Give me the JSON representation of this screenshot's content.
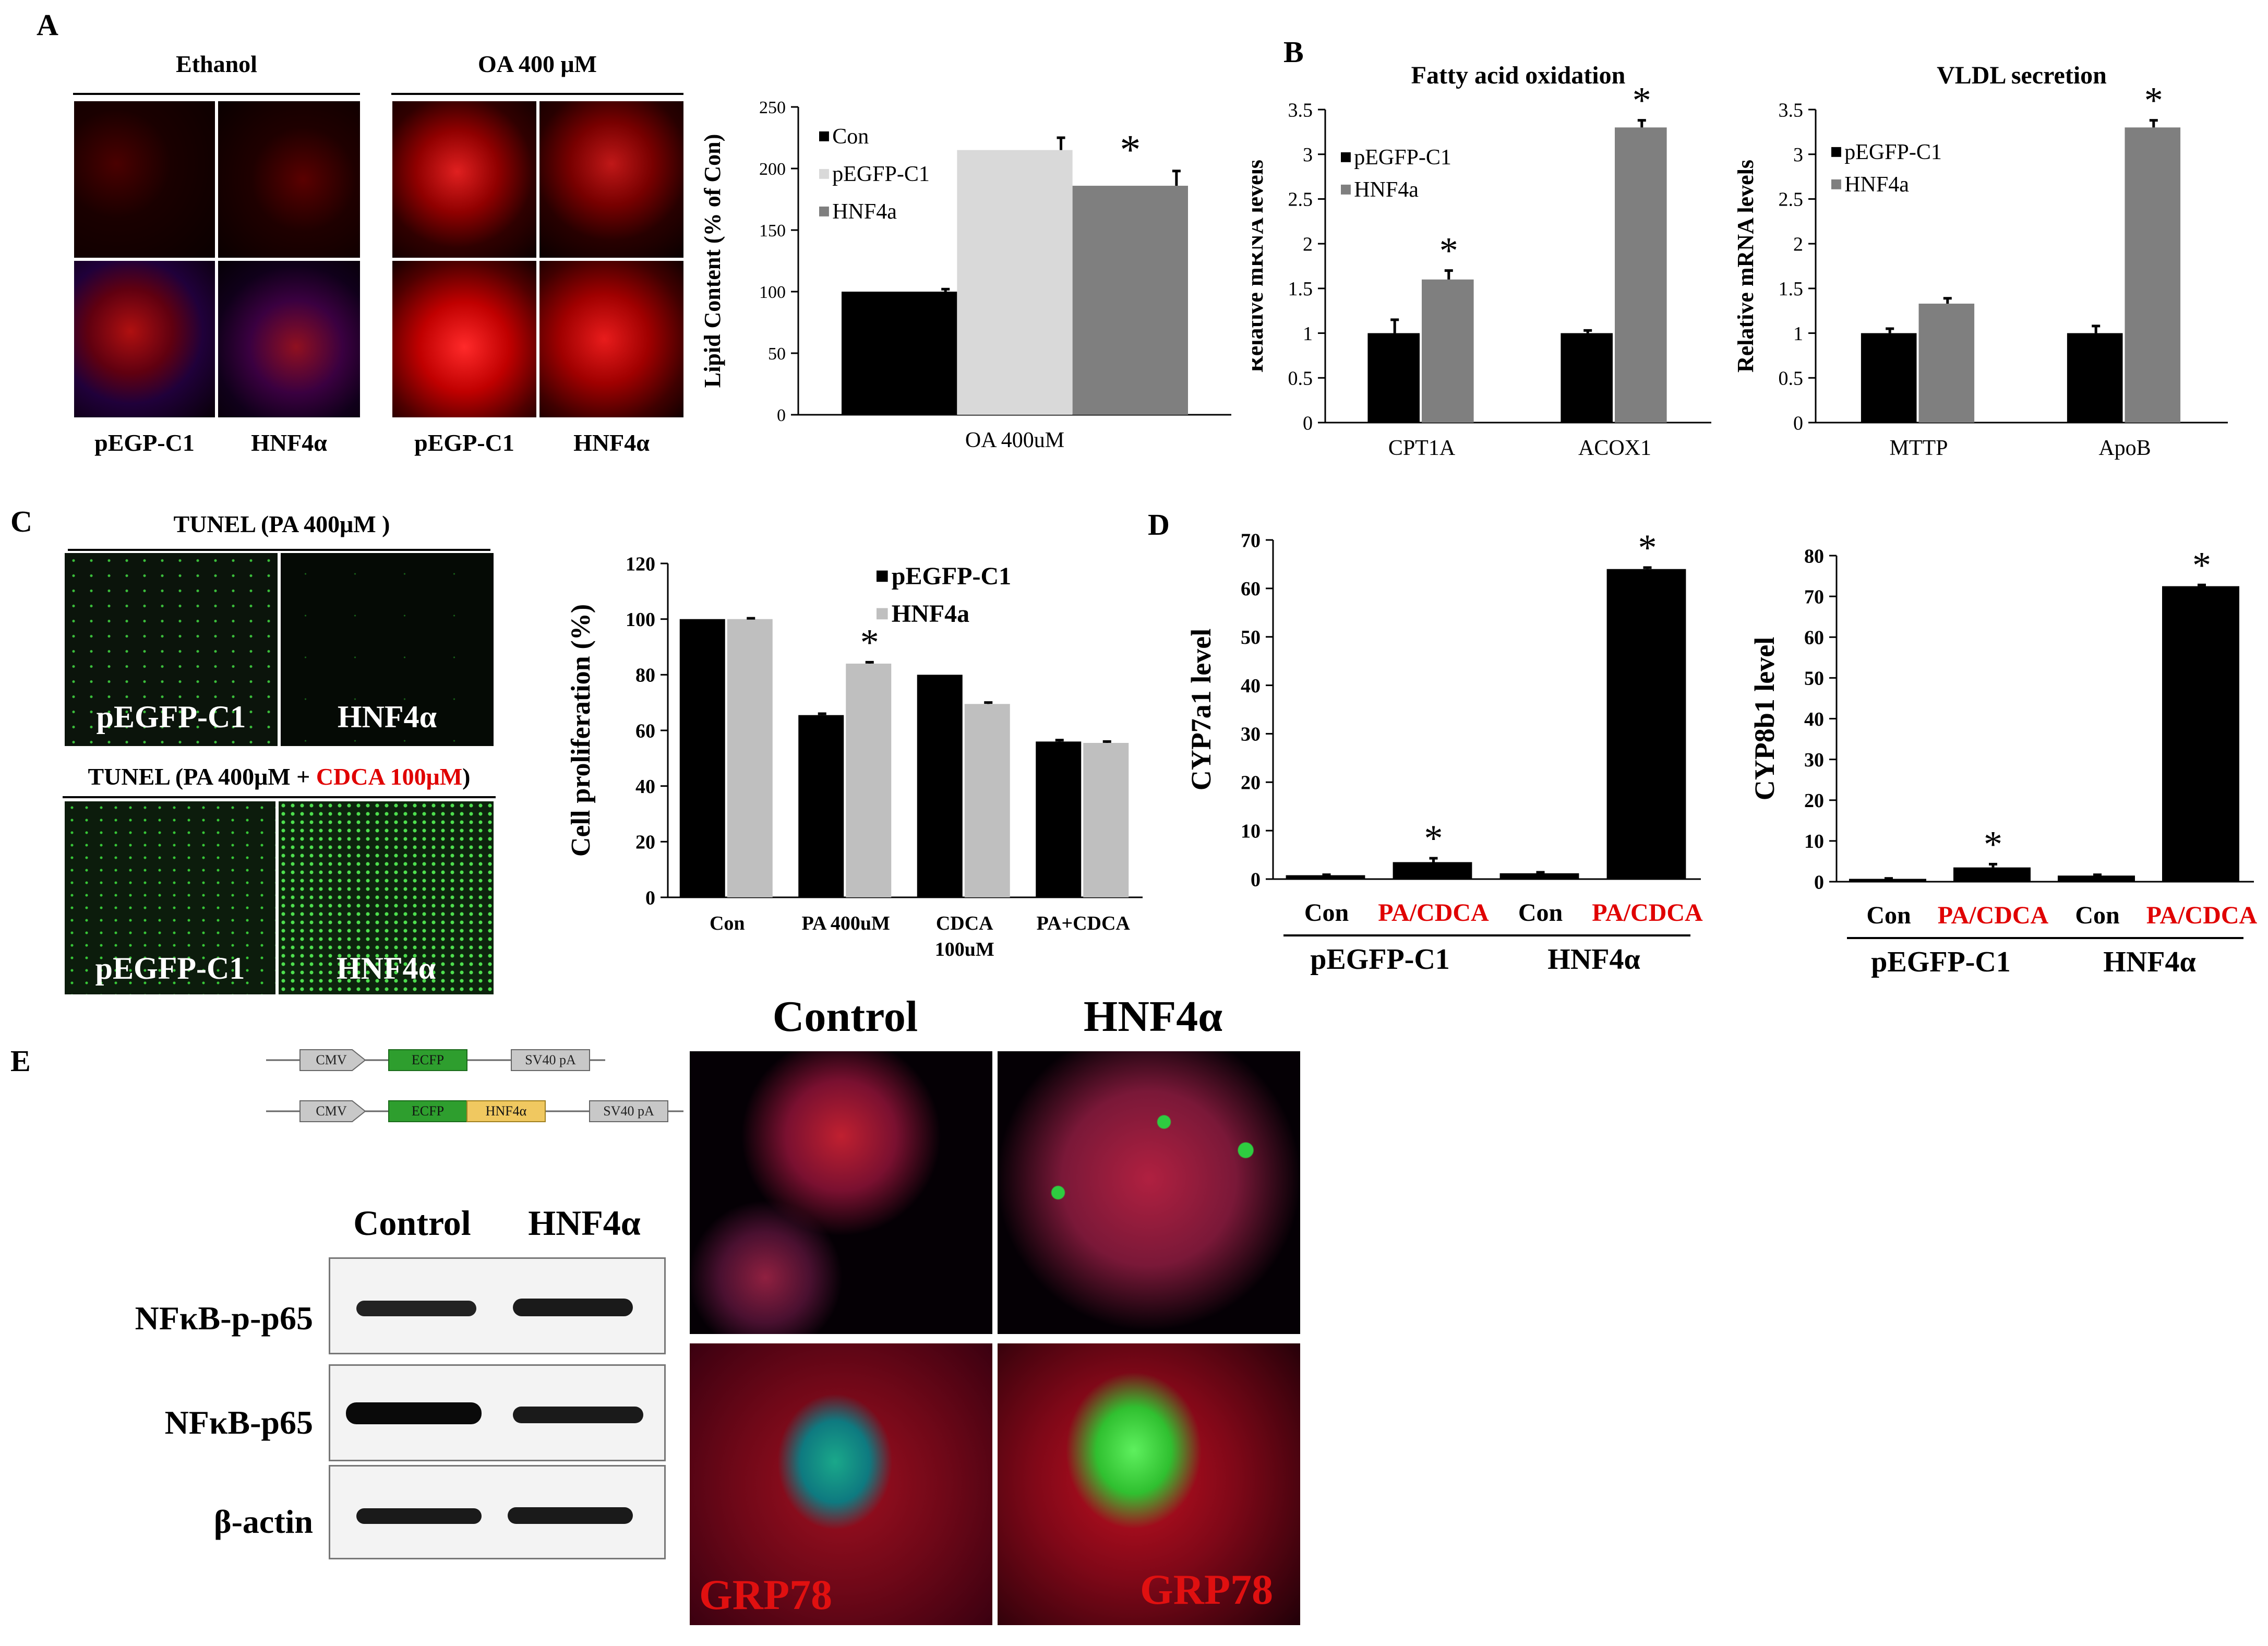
{
  "panels": {
    "A": "A",
    "B": "B",
    "C": "C",
    "D": "D",
    "E": "E"
  },
  "panelA": {
    "ethanol_label": "Ethanol",
    "oa_label": "OA 400 μM",
    "captions": [
      "pEGP-C1",
      "HNF4α",
      "pEGP-C1",
      "HNF4α"
    ]
  },
  "panelC": {
    "tunel_top": "TUNEL (PA 400μM )",
    "tunel_bottom_prefix": "TUNEL (PA 400μM + ",
    "tunel_bottom_cdca": "CDCA 100μM",
    "tunel_bottom_suffix": ")",
    "captions": [
      "pEGFP-C1",
      "HNF4α",
      "pEGFP-C1",
      "HNF4α"
    ]
  },
  "panelE": {
    "construct1": [
      "CMV",
      "ECFP",
      "SV40 pA"
    ],
    "construct2": [
      "CMV",
      "ECFP",
      "HNF4α",
      "SV40 pA"
    ],
    "blot_headers": [
      "Control",
      "HNF4α"
    ],
    "blot_rows": [
      "NFκB-p-p65",
      "NFκB-p65",
      "β-actin"
    ],
    "if_headers": [
      "Control",
      "HNF4α"
    ],
    "if_labels": [
      "GRP78",
      "GRP78"
    ]
  },
  "chart_data": [
    {
      "id": "A-lipid",
      "type": "bar",
      "categories": [
        "OA 400uM"
      ],
      "series": [
        {
          "name": "Con",
          "values": [
            100
          ],
          "errors": [
            2
          ],
          "color": "#000000"
        },
        {
          "name": "pEGFP-C1",
          "values": [
            215
          ],
          "errors": [
            10
          ],
          "color": "#d9d9d9"
        },
        {
          "name": "HNF4a",
          "values": [
            186
          ],
          "errors": [
            12
          ],
          "color": "#7f7f7f"
        }
      ],
      "ylabel": "Lipid Content (% of Con)",
      "ylim": [
        0,
        250
      ],
      "yticks": [
        0,
        50,
        100,
        150,
        200,
        250
      ],
      "legend": "top-left",
      "annotations": [
        {
          "series": "HNF4a",
          "category": "OA 400uM",
          "text": "*"
        }
      ]
    },
    {
      "id": "B-fao",
      "type": "bar",
      "title": "Fatty acid oxidation",
      "categories": [
        "CPT1A",
        "ACOX1"
      ],
      "series": [
        {
          "name": "pEGFP-C1",
          "values": [
            1.0,
            1.0
          ],
          "errors": [
            0.15,
            0.03
          ],
          "color": "#000000"
        },
        {
          "name": "HNF4a",
          "values": [
            1.6,
            3.3
          ],
          "errors": [
            0.1,
            0.08
          ],
          "color": "#7f7f7f"
        }
      ],
      "ylabel": "Relative  mRNA levels",
      "ylim": [
        0,
        3.5
      ],
      "yticks": [
        0,
        0.5,
        1,
        1.5,
        2,
        2.5,
        3,
        3.5
      ],
      "ytick_labels": [
        "0",
        "0.5",
        "1",
        "1.5",
        "2",
        "2.5",
        "3",
        "3.5"
      ],
      "legend": "top-left",
      "annotations": [
        {
          "series": "HNF4a",
          "category": "CPT1A",
          "text": "*"
        },
        {
          "series": "HNF4a",
          "category": "ACOX1",
          "text": "*"
        }
      ]
    },
    {
      "id": "B-vldl",
      "type": "bar",
      "title": "VLDL secretion",
      "categories": [
        "MTTP",
        "ApoB"
      ],
      "series": [
        {
          "name": "pEGFP-C1",
          "values": [
            1.0,
            1.0
          ],
          "errors": [
            0.05,
            0.08
          ],
          "color": "#000000"
        },
        {
          "name": "HNF4a",
          "values": [
            1.33,
            3.3
          ],
          "errors": [
            0.06,
            0.08
          ],
          "color": "#7f7f7f"
        }
      ],
      "ylabel": "Relative  mRNA levels",
      "ylim": [
        0,
        3.5
      ],
      "yticks": [
        0,
        0.5,
        1,
        1.5,
        2,
        2.5,
        3,
        3.5
      ],
      "ytick_labels": [
        "0",
        "0.5",
        "1",
        "1.5",
        "2",
        "2.5",
        "3",
        "3.5"
      ],
      "legend": "top-left",
      "annotations": [
        {
          "series": "HNF4a",
          "category": "ApoB",
          "text": "*"
        }
      ]
    },
    {
      "id": "C-prolif",
      "type": "bar",
      "categories": [
        "Con",
        "PA 400uM",
        "CDCA 100uM",
        "PA+CDCA"
      ],
      "series": [
        {
          "name": "pEGFP-C1",
          "values": [
            100,
            65.5,
            80,
            56
          ],
          "errors": [
            0,
            0.5,
            0,
            0.5
          ],
          "color": "#000000"
        },
        {
          "name": "HNF4a",
          "values": [
            100,
            84,
            69.5,
            55.5
          ],
          "errors": [
            0.3,
            0.5,
            0.5,
            0.5
          ],
          "color": "#bfbfbf"
        }
      ],
      "ylabel": "Cell proliferation (%)",
      "ylim": [
        0,
        120
      ],
      "yticks": [
        0,
        20,
        40,
        60,
        80,
        100,
        120
      ],
      "legend": "top-right",
      "annotations": [
        {
          "series": "HNF4a",
          "category": "PA 400uM",
          "text": "*"
        }
      ]
    },
    {
      "id": "D-cyp7a1",
      "type": "bar",
      "categories": [
        "Con",
        "PA/CDCA",
        "Con",
        "PA/CDCA"
      ],
      "category_colors": [
        "#000000",
        "#e00000",
        "#000000",
        "#e00000"
      ],
      "groups": [
        "pEGFP-C1",
        "HNF4α"
      ],
      "series": [
        {
          "values": [
            0.8,
            3.5,
            1.2,
            64
          ],
          "errors": [
            0.1,
            0.8,
            0.2,
            0.3
          ],
          "color": "#000000"
        }
      ],
      "ylabel": "CYP7a1 level",
      "ylim": [
        0,
        70
      ],
      "yticks": [
        0,
        10,
        20,
        30,
        40,
        50,
        60,
        70
      ],
      "annotations": [
        {
          "index": 1,
          "text": "*"
        },
        {
          "index": 3,
          "text": "*"
        }
      ]
    },
    {
      "id": "D-cyp8b1",
      "type": "bar",
      "categories": [
        "Con",
        "PA/CDCA",
        "Con",
        "PA/CDCA"
      ],
      "category_colors": [
        "#000000",
        "#e00000",
        "#000000",
        "#e00000"
      ],
      "groups": [
        "pEGFP-C1",
        "HNF4α"
      ],
      "series": [
        {
          "values": [
            0.7,
            3.5,
            1.5,
            72.5
          ],
          "errors": [
            0.1,
            0.8,
            0.2,
            0.3
          ],
          "color": "#000000"
        }
      ],
      "ylabel": "CYP8b1 level",
      "ylim": [
        0,
        80
      ],
      "yticks": [
        0,
        10,
        20,
        30,
        40,
        50,
        60,
        70,
        80
      ],
      "annotations": [
        {
          "index": 1,
          "text": "*"
        },
        {
          "index": 3,
          "text": "*"
        }
      ]
    }
  ]
}
